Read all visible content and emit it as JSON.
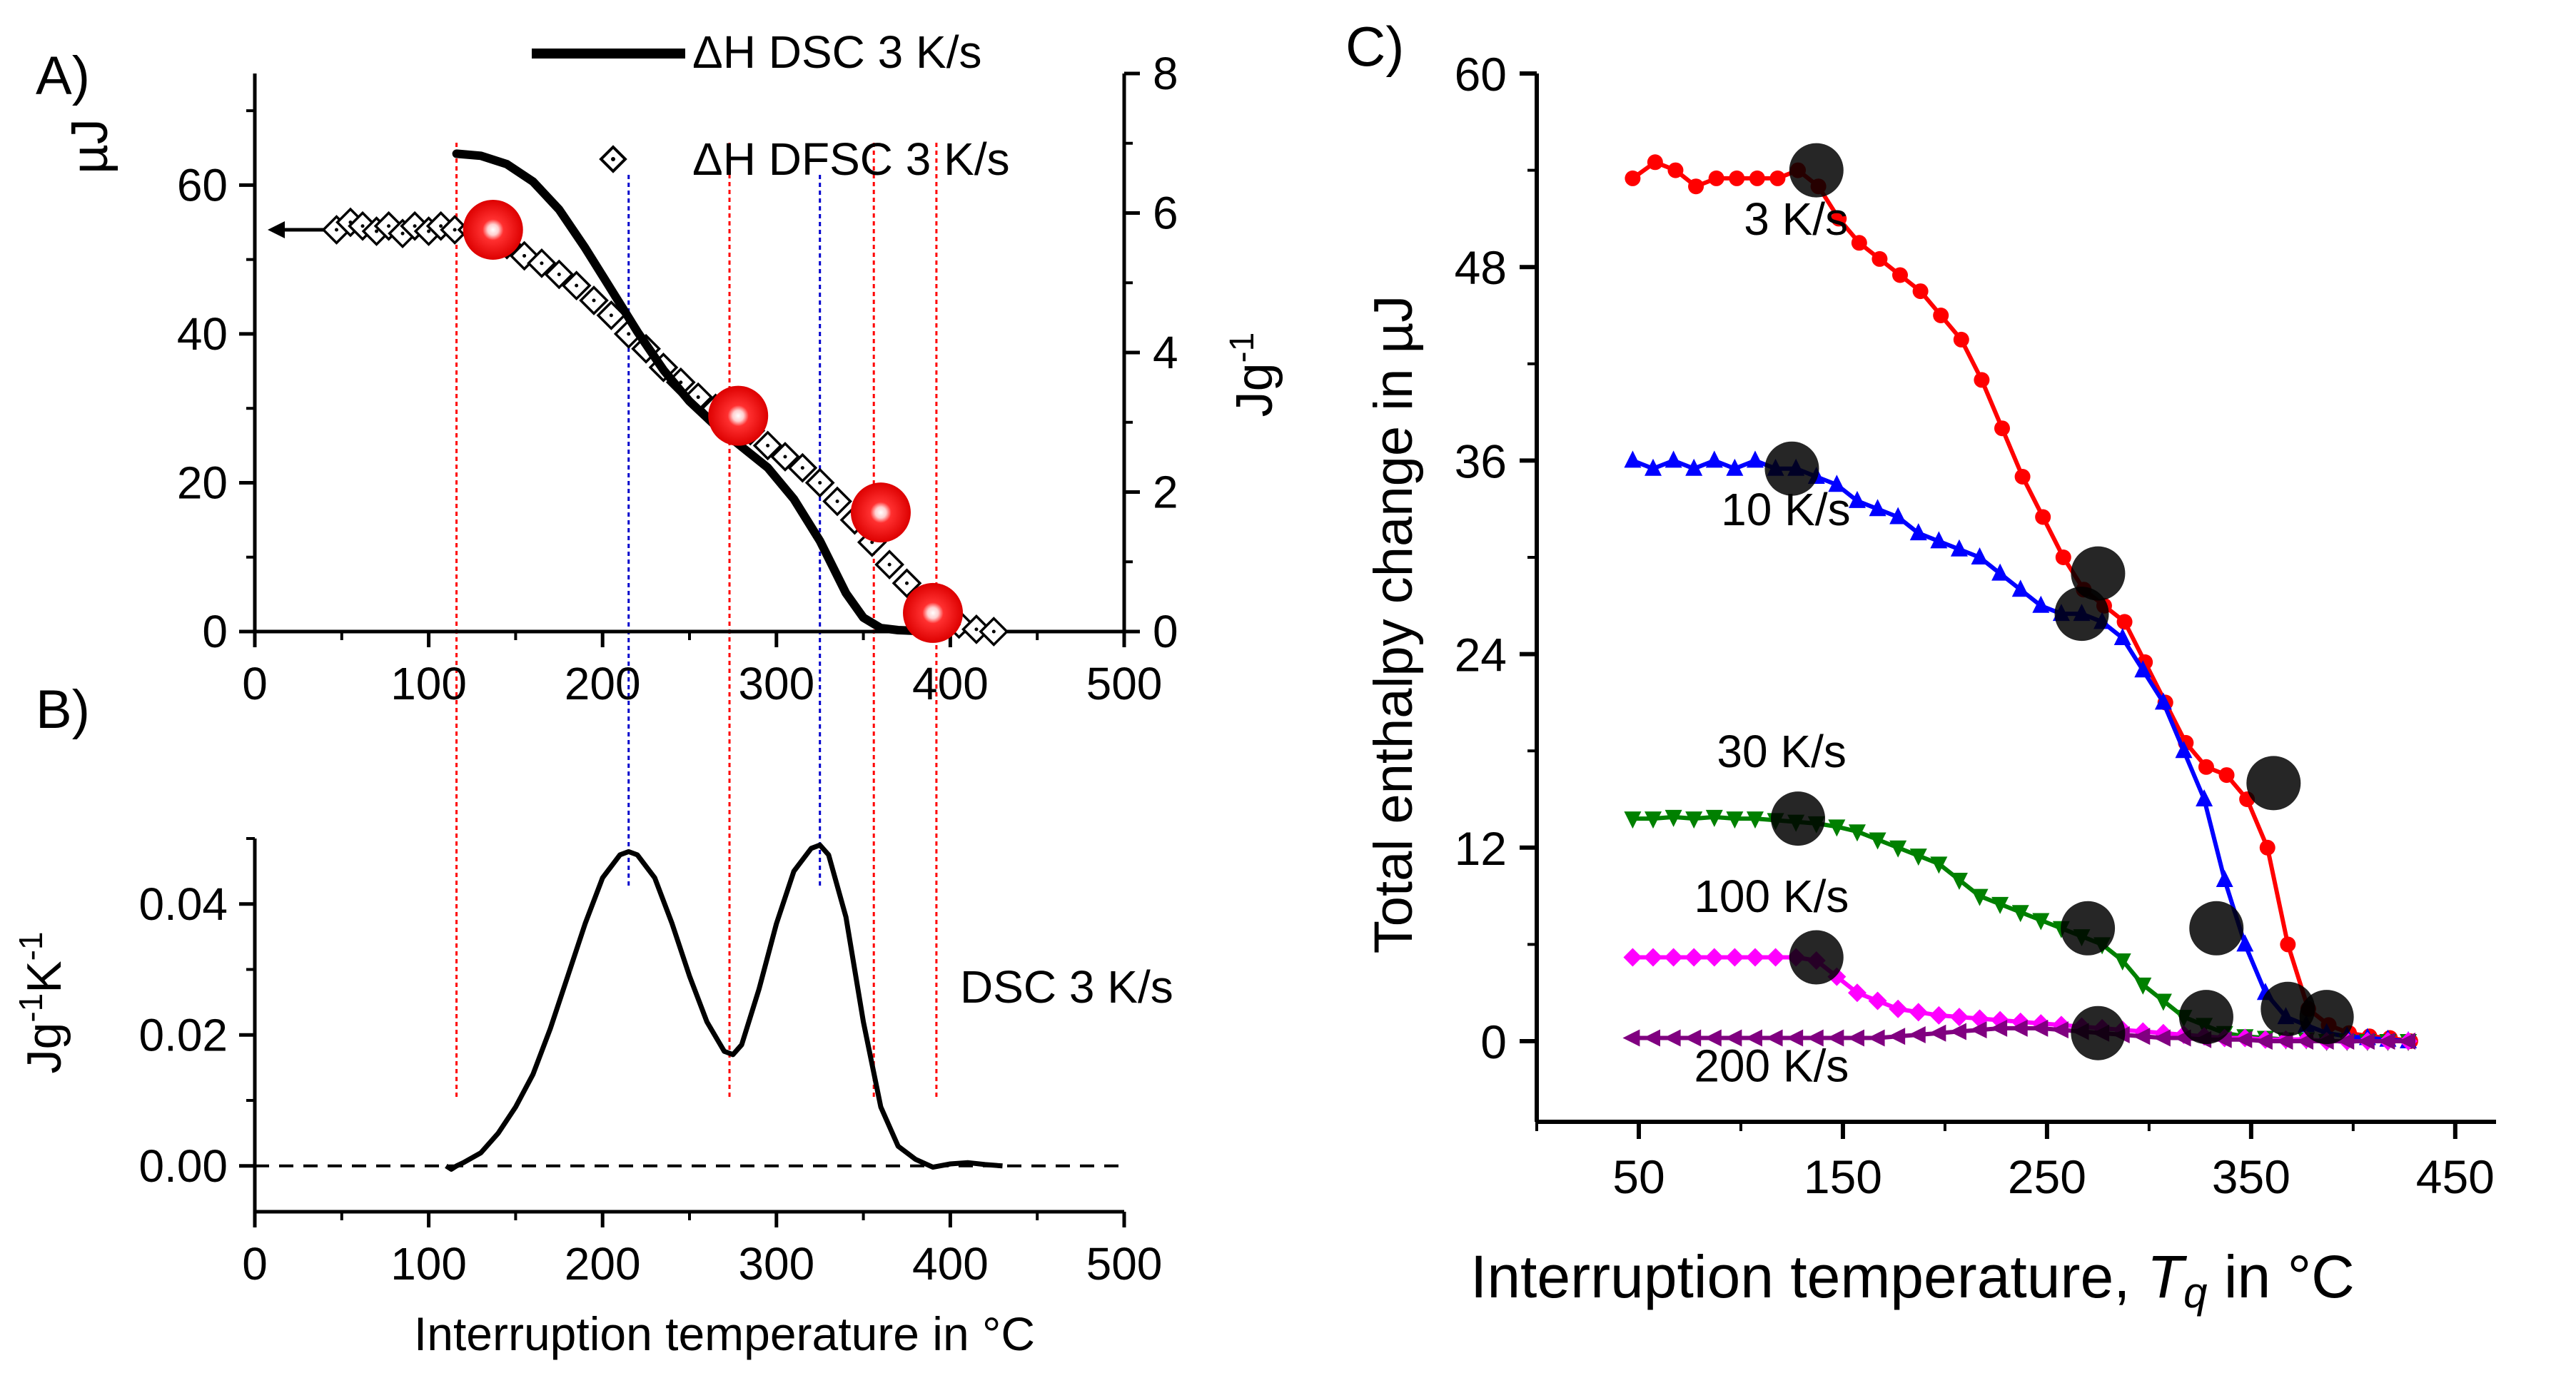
{
  "chart_data": [
    {
      "panel": "A",
      "panel_label": "A)",
      "type": "line",
      "xlabel": "",
      "xlim": [
        0,
        500
      ],
      "xticks": [
        0,
        100,
        200,
        300,
        400,
        500
      ],
      "ylabel": "µJ",
      "ylim": [
        0,
        75
      ],
      "yticks": [
        0,
        20,
        40,
        60
      ],
      "y2label": "Jg⁻¹",
      "y2lim": [
        0,
        8
      ],
      "y2ticks": [
        0,
        2,
        4,
        6,
        8
      ],
      "legend": [
        "ΔH DSC 3 K/s",
        "ΔH DFSC 3 K/s"
      ],
      "series": [
        {
          "name": "ΔH DSC 3 K/s",
          "axis": "right",
          "style": "thick-line",
          "x": [
            116,
            130,
            145,
            160,
            175,
            190,
            205,
            220,
            235,
            250,
            265,
            280,
            295,
            310,
            325,
            340,
            350,
            360,
            370,
            380,
            390
          ],
          "values": [
            6.85,
            6.82,
            6.7,
            6.45,
            6.05,
            5.5,
            4.9,
            4.3,
            3.75,
            3.3,
            2.95,
            2.65,
            2.35,
            1.9,
            1.3,
            0.55,
            0.2,
            0.05,
            0.02,
            0.01,
            0.0
          ]
        },
        {
          "name": "ΔH DFSC 3 K/s",
          "axis": "left",
          "style": "diamond",
          "x": [
            47,
            55,
            62,
            70,
            77,
            85,
            92,
            100,
            107,
            115,
            125,
            135,
            145,
            155,
            165,
            175,
            185,
            195,
            205,
            215,
            225,
            235,
            245,
            255,
            265,
            275,
            285,
            295,
            305,
            315,
            325,
            335,
            345,
            355,
            365,
            375,
            385,
            395,
            405,
            415,
            425
          ],
          "values": [
            54,
            55,
            54.5,
            53.8,
            54.5,
            53.5,
            54.5,
            53.8,
            54.5,
            54,
            54,
            52.5,
            52,
            50.5,
            49.5,
            48,
            46.5,
            44.5,
            42.5,
            40,
            38,
            35.5,
            33.5,
            31.5,
            30,
            28.5,
            27,
            25,
            23.5,
            22,
            20,
            17.5,
            15,
            12,
            9,
            6.5,
            4,
            2,
            1,
            0.3,
            0
          ]
        }
      ],
      "highlighted_points": [
        {
          "x": 137,
          "y": 54
        },
        {
          "x": 278,
          "y": 29
        },
        {
          "x": 360,
          "y": 16
        },
        {
          "x": 390,
          "y": 2.5
        }
      ],
      "arrow_note": "arrow pointing to left axis",
      "red_guides_x": [
        116,
        273,
        356,
        392
      ],
      "blue_guides_x": [
        215,
        325
      ]
    },
    {
      "panel": "B",
      "panel_label": "B)",
      "type": "line",
      "xlabel": "Interruption temperature in °C",
      "xlim": [
        0,
        500
      ],
      "xticks": [
        0,
        100,
        200,
        300,
        400,
        500
      ],
      "ylabel": "Jg⁻¹K⁻¹",
      "ylim": [
        -0.007,
        0.05
      ],
      "yticks": [
        0.0,
        0.02,
        0.04
      ],
      "ytick_labels": [
        "0.00",
        "0.02",
        "0.04"
      ],
      "annotation": "DSC 3 K/s",
      "baseline": 0.0,
      "series": [
        {
          "name": "DSC 3 K/s",
          "x": [
            110,
            113,
            116,
            120,
            130,
            140,
            150,
            160,
            170,
            180,
            190,
            200,
            210,
            215,
            220,
            230,
            240,
            250,
            260,
            270,
            275,
            280,
            290,
            300,
            310,
            320,
            325,
            330,
            340,
            350,
            360,
            370,
            380,
            390,
            400,
            410,
            420,
            430
          ],
          "values": [
            0.0,
            -0.0005,
            0.0,
            0.0005,
            0.002,
            0.005,
            0.009,
            0.014,
            0.021,
            0.029,
            0.037,
            0.044,
            0.0475,
            0.048,
            0.0475,
            0.044,
            0.037,
            0.029,
            0.022,
            0.0175,
            0.017,
            0.0185,
            0.027,
            0.037,
            0.045,
            0.0485,
            0.049,
            0.0475,
            0.038,
            0.022,
            0.009,
            0.003,
            0.001,
            -0.0002,
            0.0003,
            0.0005,
            0.0002,
            0.0
          ]
        }
      ],
      "red_guides_x": [
        116,
        273,
        356,
        392
      ],
      "blue_guides_x": [
        215,
        325
      ]
    },
    {
      "panel": "C",
      "panel_label": "C)",
      "type": "line",
      "xlabel": "Interruption temperature, ",
      "xlabel_var": "T",
      "xlabel_sub": "q",
      "xlabel_tail": " in °C",
      "xlim": [
        0,
        470
      ],
      "xticks": [
        50,
        150,
        250,
        350,
        450
      ],
      "ylabel": "Total enthalpy change in µJ",
      "ylim": [
        -5,
        60
      ],
      "yticks": [
        0,
        12,
        24,
        36,
        48,
        60
      ],
      "series": [
        {
          "name": "3 K/s",
          "color": "#ff0000",
          "marker": "circle",
          "x": [
            47,
            58,
            68,
            78,
            88,
            98,
            108,
            118,
            128,
            138,
            148,
            158,
            168,
            178,
            188,
            198,
            208,
            218,
            228,
            238,
            248,
            258,
            268,
            278,
            288,
            298,
            308,
            318,
            328,
            338,
            348,
            358,
            368,
            378,
            388,
            398,
            408,
            418,
            428
          ],
          "values": [
            53.5,
            54.5,
            54,
            53,
            53.5,
            53.5,
            53.5,
            53.5,
            54,
            53,
            51,
            49.5,
            48.5,
            47.5,
            46.5,
            45,
            43.5,
            41,
            38,
            35,
            32.5,
            30,
            28,
            27,
            26,
            23.5,
            21,
            18.5,
            17,
            16.5,
            15,
            12,
            6,
            2,
            1,
            0.5,
            0.3,
            0.2,
            0
          ]
        },
        {
          "name": "10 K/s",
          "color": "#0000ff",
          "marker": "triangle-up",
          "x": [
            47,
            57,
            67,
            77,
            87,
            97,
            107,
            117,
            127,
            137,
            147,
            157,
            167,
            177,
            187,
            197,
            207,
            217,
            227,
            237,
            247,
            257,
            267,
            277,
            287,
            297,
            307,
            317,
            327,
            337,
            347,
            357,
            367,
            377,
            387,
            397,
            407,
            417,
            427
          ],
          "values": [
            36,
            35.5,
            36,
            35.5,
            36,
            35.5,
            36,
            35.5,
            35.5,
            35,
            34.5,
            33.5,
            33,
            32.5,
            31.5,
            31,
            30.5,
            30,
            29,
            28,
            27,
            26.5,
            26.5,
            26,
            25,
            23,
            21,
            18,
            15,
            10,
            6,
            3,
            1.5,
            1,
            0.5,
            0.3,
            0.2,
            0.1,
            0
          ]
        },
        {
          "name": "30 K/s",
          "color": "#008000",
          "marker": "triangle-down",
          "x": [
            47,
            57,
            67,
            77,
            87,
            97,
            107,
            117,
            127,
            137,
            147,
            157,
            167,
            177,
            187,
            197,
            207,
            217,
            227,
            237,
            247,
            257,
            267,
            277,
            287,
            297,
            307,
            317,
            327,
            337,
            347,
            357,
            367,
            377,
            387,
            397,
            407,
            417,
            427
          ],
          "values": [
            13.8,
            13.8,
            13.9,
            13.8,
            13.9,
            13.8,
            13.8,
            13.7,
            13.6,
            13.5,
            13.3,
            13,
            12.5,
            12,
            11.5,
            11,
            10,
            9,
            8.5,
            8,
            7.5,
            7,
            6.5,
            6,
            5,
            3.5,
            2.5,
            1.5,
            1,
            0.5,
            0.3,
            0.2,
            0.1,
            0.1,
            0,
            0,
            0,
            0,
            0
          ]
        },
        {
          "name": "100 K/s",
          "color": "#ff00ff",
          "marker": "diamond",
          "x": [
            47,
            57,
            67,
            77,
            87,
            97,
            107,
            117,
            127,
            137,
            147,
            157,
            167,
            177,
            187,
            197,
            207,
            217,
            227,
            237,
            247,
            257,
            267,
            277,
            287,
            297,
            307,
            317,
            327,
            337,
            347,
            357,
            367,
            377,
            387,
            397,
            407,
            417,
            427
          ],
          "values": [
            5.2,
            5.2,
            5.2,
            5.2,
            5.2,
            5.2,
            5.2,
            5.2,
            5.2,
            5,
            4,
            3,
            2.5,
            2,
            1.8,
            1.6,
            1.5,
            1.4,
            1.3,
            1.2,
            1.1,
            1,
            0.9,
            0.8,
            0.7,
            0.6,
            0.5,
            0.4,
            0.3,
            0.2,
            0.2,
            0.1,
            0.1,
            0.1,
            0,
            0,
            0,
            0,
            0
          ]
        },
        {
          "name": "200 K/s",
          "color": "#800080",
          "marker": "triangle-left",
          "x": [
            47,
            57,
            67,
            77,
            87,
            97,
            107,
            117,
            127,
            137,
            147,
            157,
            167,
            177,
            187,
            197,
            207,
            217,
            227,
            237,
            247,
            257,
            267,
            277,
            287,
            297,
            307,
            317,
            327,
            337,
            347,
            357,
            367,
            377,
            387,
            397,
            407,
            417,
            427
          ],
          "values": [
            0.2,
            0.2,
            0.2,
            0.2,
            0.2,
            0.2,
            0.2,
            0.2,
            0.2,
            0.2,
            0.2,
            0.2,
            0.2,
            0.3,
            0.4,
            0.5,
            0.6,
            0.7,
            0.8,
            0.8,
            0.8,
            0.7,
            0.6,
            0.5,
            0.4,
            0.3,
            0.2,
            0.2,
            0.1,
            0.1,
            0.1,
            0,
            0,
            0,
            0,
            0,
            0,
            0,
            0
          ]
        }
      ],
      "hatched_markers": [
        {
          "series": "3 K/s",
          "points": [
            [
              137,
              54
            ],
            [
              275,
              29
            ],
            [
              361,
              16
            ],
            [
              387,
              1.5
            ]
          ]
        },
        {
          "series": "10 K/s",
          "points": [
            [
              125,
              35.5
            ],
            [
              267,
              26.5
            ],
            [
              333,
              7
            ],
            [
              368,
              2
            ]
          ]
        },
        {
          "series": "30 K/s",
          "points": [
            [
              128,
              13.8
            ],
            [
              270,
              7
            ],
            [
              328,
              1.5
            ]
          ]
        },
        {
          "series": "100 K/s",
          "points": [
            [
              137,
              5.2
            ],
            [
              275,
              0.5
            ]
          ]
        }
      ],
      "series_labels": [
        {
          "text": "3 K/s",
          "x": 127,
          "y": 50
        },
        {
          "text": "10 K/s",
          "x": 122,
          "y": 32
        },
        {
          "text": "30 K/s",
          "x": 120,
          "y": 17
        },
        {
          "text": "100 K/s",
          "x": 115,
          "y": 8
        },
        {
          "text": "200 K/s",
          "x": 115,
          "y": -2.5
        }
      ]
    }
  ]
}
